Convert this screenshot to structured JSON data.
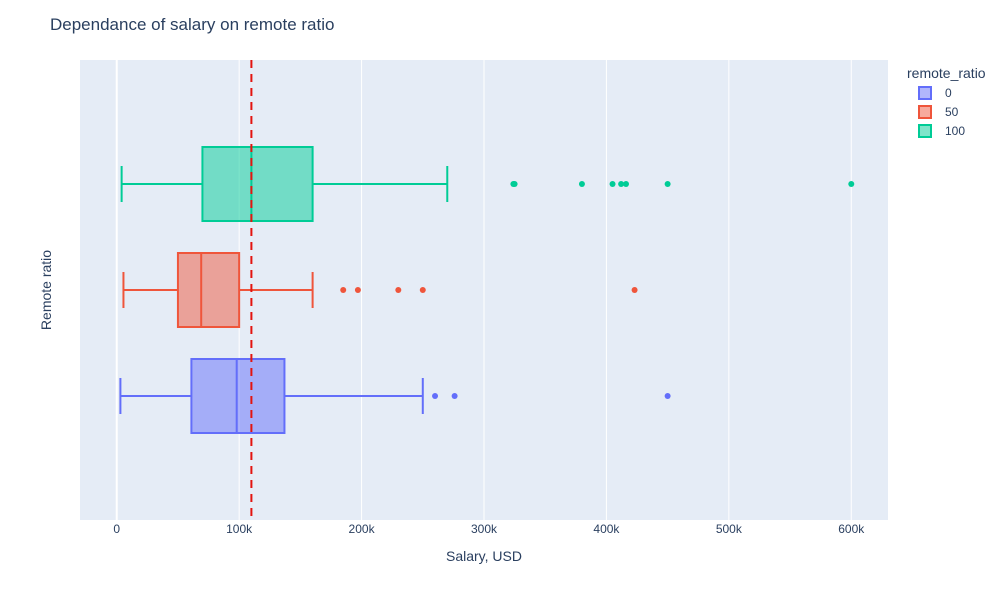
{
  "chart_data": {
    "type": "box",
    "orientation": "horizontal",
    "title": "Dependance of salary on remote ratio",
    "xlabel": "Salary, USD",
    "ylabel": "Remote ratio",
    "xlim": [
      -30000,
      630000
    ],
    "x_ticks": [
      0,
      100000,
      200000,
      300000,
      400000,
      500000,
      600000
    ],
    "x_tick_labels": [
      "0",
      "100k",
      "200k",
      "300k",
      "400k",
      "500k",
      "600k"
    ],
    "grid": true,
    "legend": {
      "title": "remote_ratio",
      "position": "top-right"
    },
    "reference_line": {
      "x": 110000,
      "color": "#e3140f",
      "style": "dashed"
    },
    "series": [
      {
        "name": "0",
        "color": "#636efa",
        "fill": "rgba(99,110,250,0.5)",
        "whisker_low": 3000,
        "q1": 61000,
        "median": 98000,
        "q3": 137000,
        "whisker_high": 250000,
        "outliers": [
          260000,
          276000,
          450000
        ]
      },
      {
        "name": "50",
        "color": "#ef553b",
        "fill": "rgba(239,85,59,0.5)",
        "whisker_low": 5500,
        "q1": 50000,
        "median": 69000,
        "q3": 100000,
        "whisker_high": 160000,
        "outliers": [
          185000,
          197000,
          230000,
          250000,
          423000
        ]
      },
      {
        "name": "100",
        "color": "#00cc96",
        "fill": "rgba(0,204,150,0.5)",
        "whisker_low": 4000,
        "q1": 70000,
        "median": 110000,
        "q3": 160000,
        "whisker_high": 270000,
        "outliers": [
          324000,
          325000,
          380000,
          405000,
          412000,
          416000,
          450000,
          600000
        ]
      }
    ]
  }
}
